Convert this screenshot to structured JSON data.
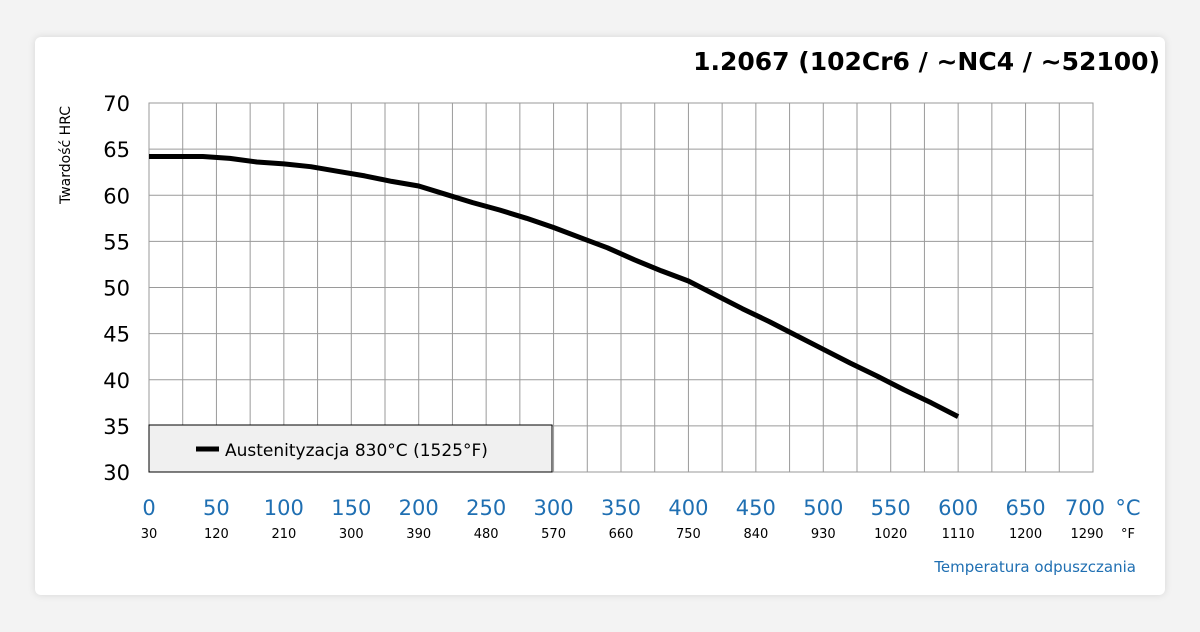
{
  "colors": {
    "accent": "#1f6fb2",
    "grid": "#9a9a9a",
    "line": "#000000",
    "legend_bg": "#f0f0f0"
  },
  "chart_data": {
    "type": "line",
    "title": "1.2067 (102Cr6 / ~NC4 / ~52100)",
    "ylabel": "Twardość HRC",
    "xlabel": "Temperatura odpuszczania",
    "x_unit": "°C",
    "x_unit_secondary": "°F",
    "xlim": [
      0,
      700
    ],
    "ylim": [
      30,
      70
    ],
    "x_ticks": [
      0,
      50,
      100,
      150,
      200,
      250,
      300,
      350,
      400,
      450,
      500,
      550,
      600,
      650,
      700
    ],
    "x_ticks_f": [
      "30",
      "120",
      "210",
      "300",
      "390",
      "480",
      "570",
      "660",
      "750",
      "840",
      "930",
      "1020",
      "1110",
      "1200",
      "1290"
    ],
    "y_ticks": [
      30,
      35,
      40,
      45,
      50,
      55,
      60,
      65,
      70
    ],
    "grid": true,
    "legend_position": "bottom-left",
    "series": [
      {
        "name": "Austenityzacja 830°C (1525°F)",
        "x": [
          0,
          20,
          40,
          60,
          80,
          100,
          120,
          140,
          160,
          180,
          200,
          220,
          240,
          260,
          280,
          300,
          320,
          340,
          360,
          380,
          400,
          420,
          440,
          460,
          480,
          500,
          520,
          540,
          560,
          580,
          600
        ],
        "y": [
          64.2,
          64.2,
          64.2,
          64.0,
          63.6,
          63.4,
          63.1,
          62.6,
          62.1,
          61.5,
          61.0,
          60.1,
          59.2,
          58.4,
          57.5,
          56.5,
          55.4,
          54.3,
          53.0,
          51.8,
          50.7,
          49.2,
          47.7,
          46.3,
          44.8,
          43.3,
          41.8,
          40.4,
          38.9,
          37.5,
          36.0
        ]
      }
    ]
  }
}
